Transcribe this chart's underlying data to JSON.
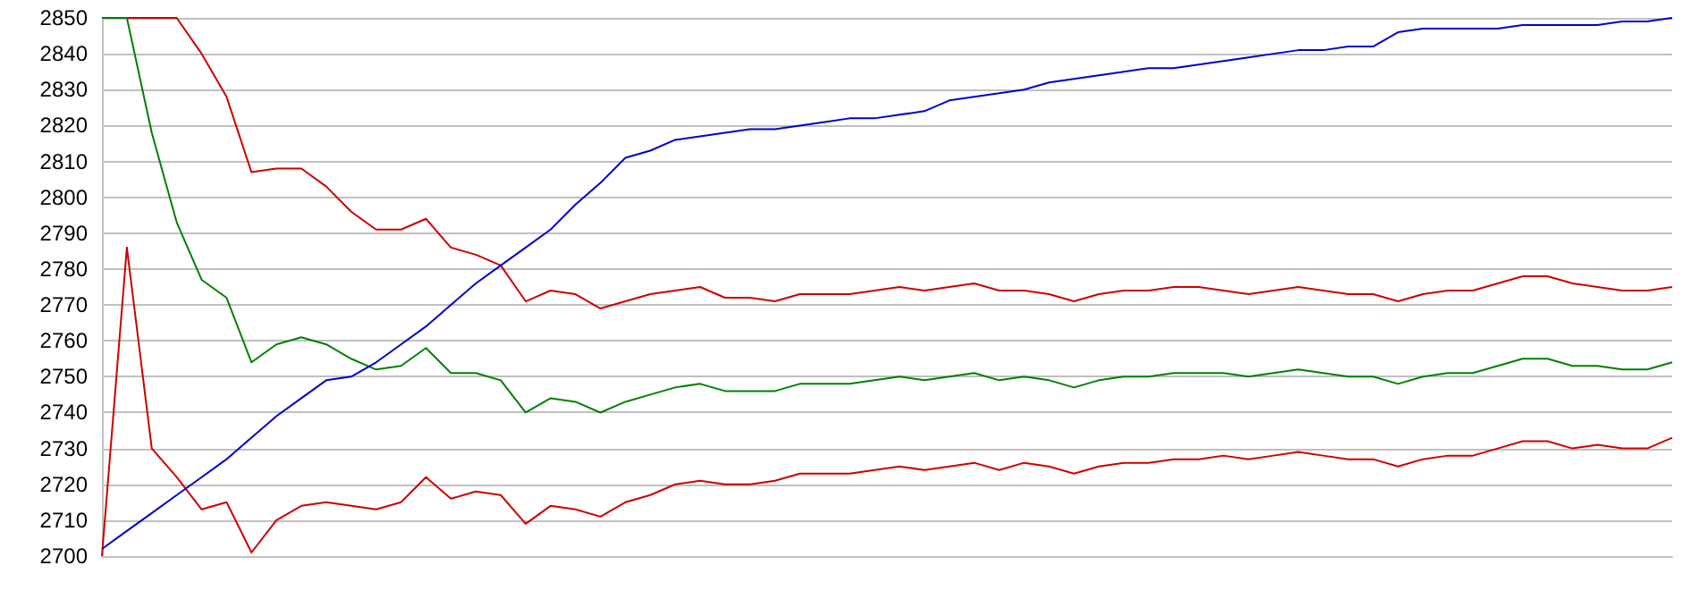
{
  "chart_data": {
    "type": "line",
    "categories": [
      null,
      null,
      null,
      null,
      null,
      null,
      null,
      null,
      null,
      null,
      null,
      null,
      null,
      null,
      null,
      null,
      null,
      null,
      null,
      null,
      null,
      null,
      null,
      null,
      null,
      null,
      null,
      null,
      null,
      null,
      null,
      null,
      null,
      null,
      null,
      null,
      null,
      null,
      null,
      null,
      null,
      null,
      null,
      null,
      null,
      null,
      null,
      null,
      null,
      null,
      null,
      null,
      null,
      null,
      null,
      null,
      null,
      null,
      null,
      null,
      null,
      null,
      null,
      null
    ],
    "series": [
      {
        "color": "#cc0000",
        "values": [
          2850,
          2850,
          2850,
          2850,
          2840,
          2828,
          2807,
          2808,
          2808,
          2803,
          2796,
          2791,
          2791,
          2794,
          2786,
          2784,
          2781,
          2771,
          2774,
          2773,
          2769,
          2771,
          2773,
          2774,
          2775,
          2772,
          2772,
          2771,
          2773,
          2773,
          2773,
          2774,
          2775,
          2774,
          2775,
          2776,
          2774,
          2774,
          2773,
          2771,
          2773,
          2774,
          2774,
          2775,
          2775,
          2774,
          2773,
          2774,
          2775,
          2774,
          2773,
          2773,
          2771,
          2773,
          2774,
          2774,
          2776,
          2778,
          2778,
          2776,
          2775,
          2774,
          2774,
          2775
        ]
      },
      {
        "color": "#008000",
        "values": [
          2850,
          2850,
          2818,
          2793,
          2777,
          2772,
          2754,
          2759,
          2761,
          2759,
          2755,
          2752,
          2753,
          2758,
          2751,
          2751,
          2749,
          2740,
          2744,
          2743,
          2740,
          2743,
          2745,
          2747,
          2748,
          2746,
          2746,
          2746,
          2748,
          2748,
          2748,
          2749,
          2750,
          2749,
          2750,
          2751,
          2749,
          2750,
          2749,
          2747,
          2749,
          2750,
          2750,
          2751,
          2751,
          2751,
          2750,
          2751,
          2752,
          2751,
          2750,
          2750,
          2748,
          2750,
          2751,
          2751,
          2753,
          2755,
          2755,
          2753,
          2753,
          2752,
          2752,
          2754
        ]
      },
      {
        "color": "#cc0000",
        "values": [
          2700,
          2786,
          2730,
          2722,
          2713,
          2715,
          2701,
          2710,
          2714,
          2715,
          2714,
          2713,
          2715,
          2722,
          2716,
          2718,
          2717,
          2709,
          2714,
          2713,
          2711,
          2715,
          2717,
          2720,
          2721,
          2720,
          2720,
          2721,
          2723,
          2723,
          2723,
          2724,
          2725,
          2724,
          2725,
          2726,
          2724,
          2726,
          2725,
          2723,
          2725,
          2726,
          2726,
          2727,
          2727,
          2728,
          2727,
          2728,
          2729,
          2728,
          2727,
          2727,
          2725,
          2727,
          2728,
          2728,
          2730,
          2732,
          2732,
          2730,
          2731,
          2730,
          2730,
          2733
        ]
      },
      {
        "color": "#0000cc",
        "values": [
          2702,
          2707,
          2712,
          2717,
          2722,
          2727,
          2733,
          2739,
          2744,
          2749,
          2750,
          2754,
          2759,
          2764,
          2770,
          2776,
          2781,
          2786,
          2791,
          2798,
          2804,
          2811,
          2813,
          2816,
          2817,
          2818,
          2819,
          2819,
          2820,
          2821,
          2822,
          2822,
          2823,
          2824,
          2827,
          2828,
          2829,
          2830,
          2832,
          2833,
          2834,
          2835,
          2836,
          2836,
          2837,
          2838,
          2839,
          2840,
          2841,
          2841,
          2842,
          2842,
          2846,
          2847,
          2847,
          2847,
          2847,
          2848,
          2848,
          2848,
          2848,
          2849,
          2849,
          2850
        ]
      }
    ],
    "ylim": [
      2700,
      2850
    ],
    "yticks": [
      2700,
      2710,
      2720,
      2730,
      2740,
      2750,
      2760,
      2770,
      2780,
      2790,
      2800,
      2810,
      2820,
      2830,
      2840,
      2850
    ],
    "grid": "y",
    "tick_labels": "y",
    "marker": "none",
    "line_style": "solid"
  }
}
